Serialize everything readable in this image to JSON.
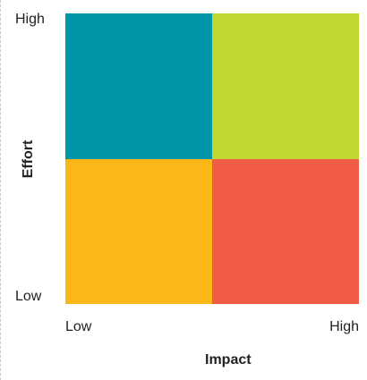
{
  "matrix": {
    "y_axis": {
      "title": "Effort",
      "high_label": "High",
      "low_label": "Low"
    },
    "x_axis": {
      "title": "Impact",
      "low_label": "Low",
      "high_label": "High"
    },
    "quadrants": {
      "top_left": {
        "color": "#0096AA"
      },
      "top_right": {
        "color": "#C2D731"
      },
      "bottom_left": {
        "color": "#FBB617"
      },
      "bottom_right": {
        "color": "#F15D44"
      }
    }
  }
}
